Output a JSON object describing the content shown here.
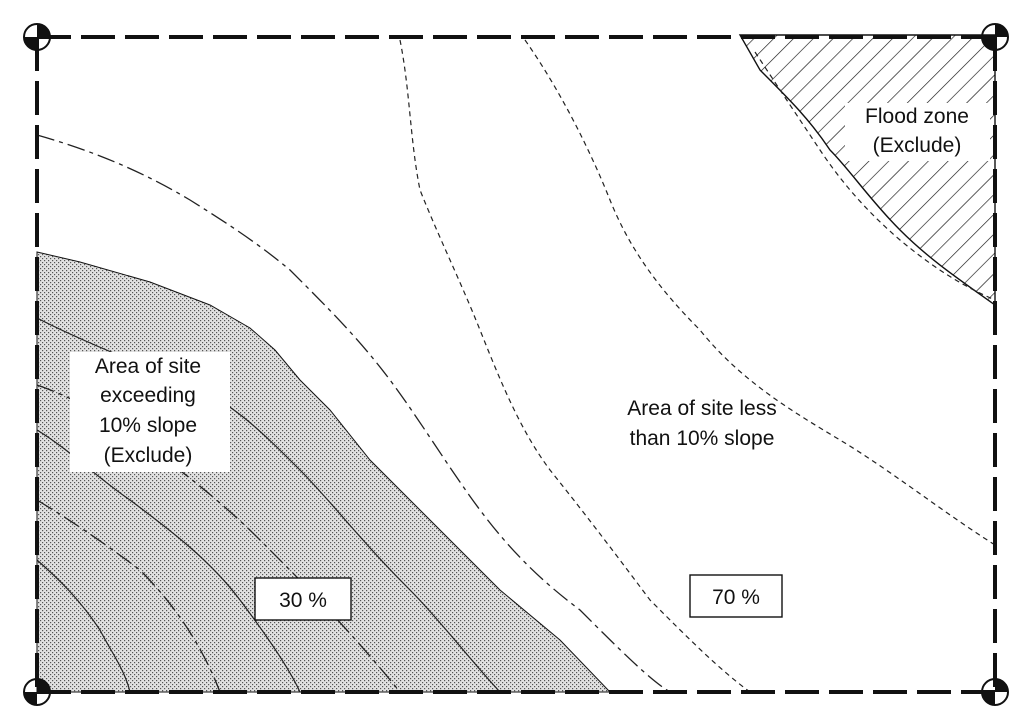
{
  "labels": {
    "flood_line1": "Flood  zone",
    "flood_line2": "(Exclude)",
    "steep_line1": "Area of site",
    "steep_line2": "exceeding",
    "steep_line3": "10% slope",
    "steep_line4": "(Exclude)",
    "gentle_line1": "Area of site less",
    "gentle_line2": "than 10% slope",
    "steep_percent": "30 %",
    "gentle_percent": "70 %"
  },
  "shares": {
    "steep_area_percent": 30,
    "gentle_area_percent": 70
  },
  "colors": {
    "line": "#111111",
    "steep_fill": "#c8c8c8",
    "hatch": "#111111",
    "background": "#ffffff"
  }
}
